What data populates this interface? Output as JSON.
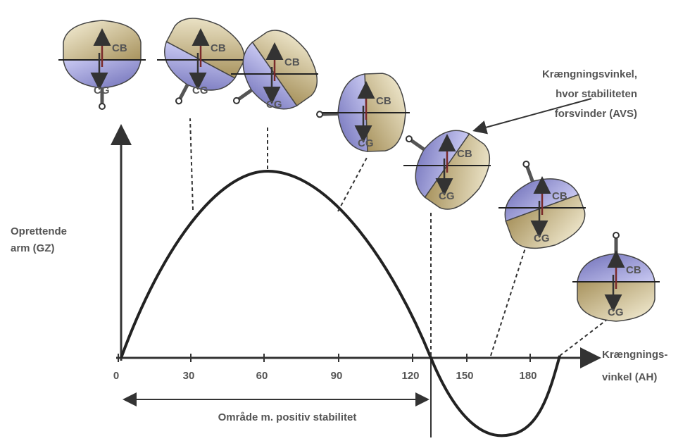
{
  "axis": {
    "y_label": [
      "Oprettende",
      "arm (GZ)"
    ],
    "x_label": [
      "Krængnings-",
      "vinkel (AH)"
    ],
    "ticks": [
      "0",
      "30",
      "60",
      "90",
      "120",
      "150",
      "180"
    ]
  },
  "avs_label": [
    "Krængningsvinkel,",
    "hvor stabiliteten",
    "forsvinder (AVS)"
  ],
  "range_label": "Område m. positiv stabilitet",
  "ships": [
    {
      "cb": "CB",
      "cg": "CG"
    },
    {
      "cb": "CB",
      "cg": "CG"
    },
    {
      "cb": "CB",
      "cg": "CG"
    },
    {
      "cb": "CB",
      "cg": "CG"
    },
    {
      "cb": "CB",
      "cg": "CG"
    },
    {
      "cb": "CB",
      "cg": "CG"
    },
    {
      "cb": "CB",
      "cg": "CG"
    }
  ]
}
